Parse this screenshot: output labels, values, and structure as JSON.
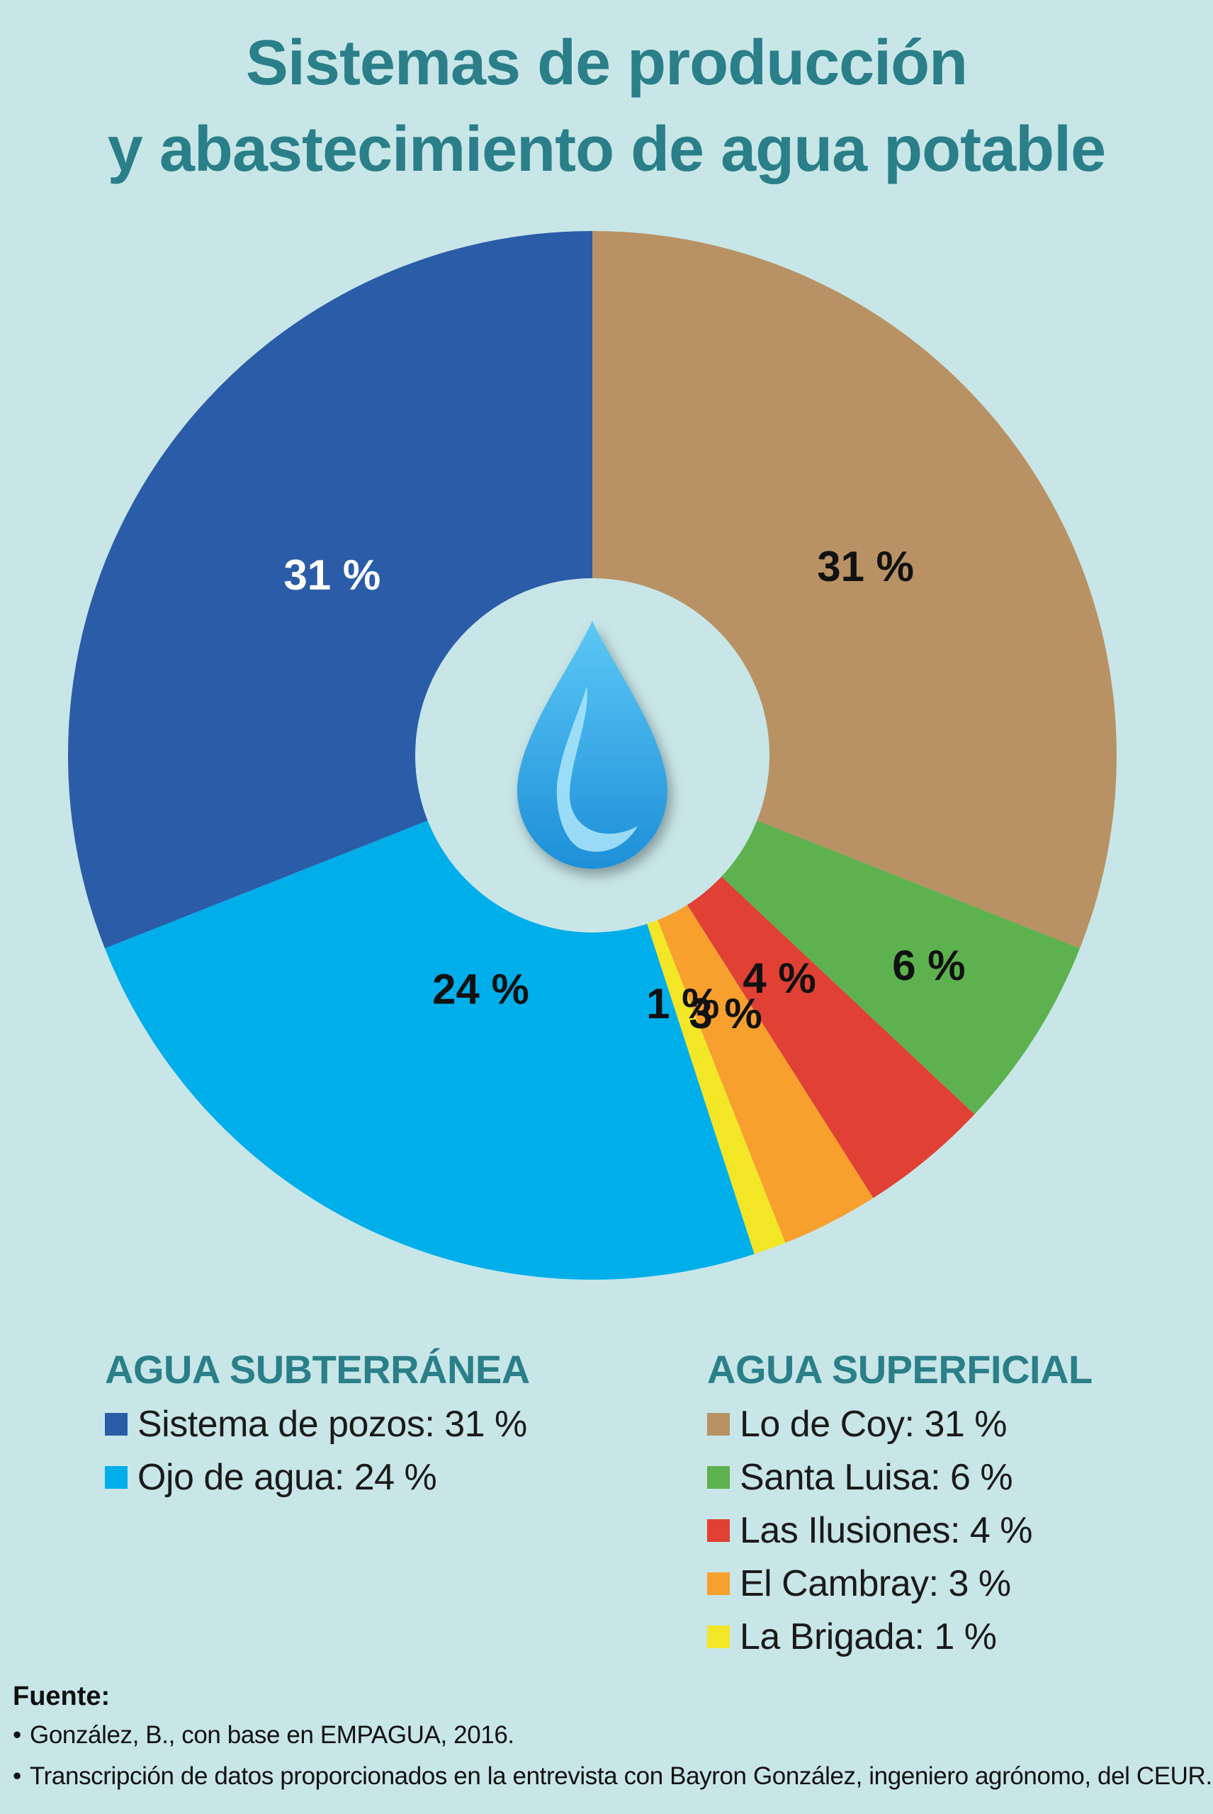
{
  "title": {
    "line1": "Sistemas de producción",
    "line2": "y abastecimiento de agua potable"
  },
  "chart_data": {
    "type": "pie",
    "donut": true,
    "center_icon": "water-drop-icon",
    "slices": [
      {
        "name": "Lo de Coy",
        "value": 31,
        "label": "31 %",
        "color": "#b89264",
        "label_color": "#111111"
      },
      {
        "name": "Santa Luisa",
        "value": 6,
        "label": "6 %",
        "color": "#5db14e",
        "label_color": "#111111"
      },
      {
        "name": "Las Ilusiones",
        "value": 4,
        "label": "4 %",
        "color": "#e04134",
        "label_color": "#111111"
      },
      {
        "name": "El Cambray",
        "value": 3,
        "label": "3 %",
        "color": "#f7a02e",
        "label_color": "#111111"
      },
      {
        "name": "La Brigada",
        "value": 1,
        "label": "1 %",
        "color": "#f2e627",
        "label_color": "#111111"
      },
      {
        "name": "Ojo de agua",
        "value": 24,
        "label": "24 %",
        "color": "#00aeea",
        "label_color": "#111111"
      },
      {
        "name": "Sistema de pozos",
        "value": 31,
        "label": "31 %",
        "color": "#2a5ca8",
        "label_color": "#ffffff"
      }
    ]
  },
  "legend": {
    "groups": [
      {
        "heading": "AGUA SUBTERRÁNEA",
        "items": [
          {
            "label": "Sistema de pozos: 31 %",
            "color": "#2a5ca8"
          },
          {
            "label": "Ojo de agua: 24 %",
            "color": "#00aeea"
          }
        ]
      },
      {
        "heading": "AGUA SUPERFICIAL",
        "items": [
          {
            "label": "Lo de Coy: 31 %",
            "color": "#b89264"
          },
          {
            "label": "Santa Luisa: 6 %",
            "color": "#5db14e"
          },
          {
            "label": "Las Ilusiones: 4 %",
            "color": "#e04134"
          },
          {
            "label": "El Cambray: 3 %",
            "color": "#f7a02e"
          },
          {
            "label": "La Brigada: 1 %",
            "color": "#f2e627"
          }
        ]
      }
    ]
  },
  "source": {
    "heading": "Fuente:",
    "items": [
      "González, B., con base en EMPAGUA, 2016.",
      "Transcripción de datos proporcionados en la entrevista con Bayron González, ingeniero agrónomo, del CEUR."
    ]
  }
}
